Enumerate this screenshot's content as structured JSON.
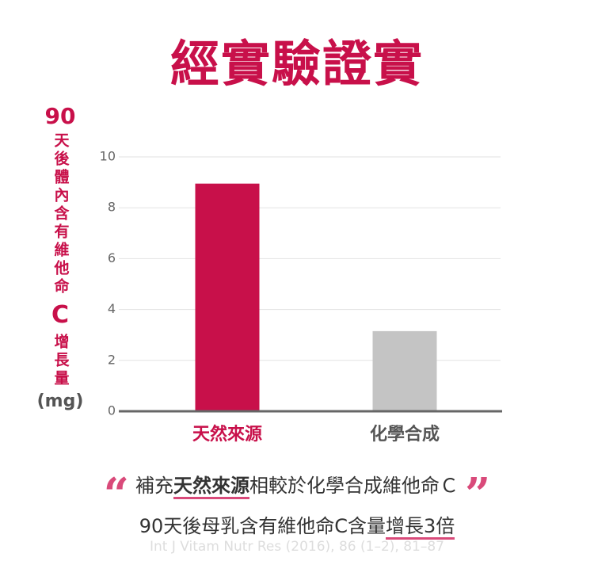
{
  "chart_data": {
    "type": "bar",
    "title": "經實驗證實",
    "y_label": [
      "90",
      "天後體內含有維他命",
      "C",
      "增長量",
      "(mg)"
    ],
    "categories": [
      "天然來源",
      "化學合成"
    ],
    "values": [
      8.95,
      3.15
    ],
    "colors": [
      "#c8104a",
      "#c4c4c4"
    ],
    "ylim": [
      0,
      10
    ],
    "yticks": [
      0,
      2,
      4,
      6,
      8,
      10
    ],
    "grid": true
  },
  "quote": {
    "open": "“",
    "close": "”",
    "line1": [
      "補充",
      "天然來源",
      "相較於化學合成維他命Ｃ"
    ],
    "line2": [
      "90天後母乳含有維他命C含量",
      "增長3倍"
    ],
    "citation": "Int J Vitam Nutr Res (2016), 86 (1–2), 81–87"
  }
}
